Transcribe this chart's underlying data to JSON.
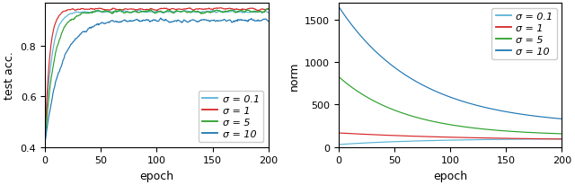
{
  "left_plot": {
    "ylabel": "test acc.",
    "xlabel": "epoch",
    "ylim": [
      0.4,
      0.97
    ],
    "xlim": [
      0,
      200
    ],
    "yticks": [
      0.4,
      0.6,
      0.8
    ],
    "xticks": [
      0,
      50,
      100,
      150,
      200
    ],
    "curves": [
      {
        "sigma": "0.1",
        "color": "#5ab4d6",
        "final": 0.935,
        "init": 0.42,
        "speed": 1.8,
        "noise": 0.006
      },
      {
        "sigma": "1",
        "color": "#d62728",
        "final": 0.945,
        "init": 0.42,
        "speed": 2.5,
        "noise": 0.006
      },
      {
        "sigma": "5",
        "color": "#2ca02c",
        "final": 0.935,
        "init": 0.42,
        "speed": 1.2,
        "noise": 0.009
      },
      {
        "sigma": "10",
        "color": "#1f77b4",
        "final": 0.9,
        "init": 0.42,
        "speed": 0.7,
        "noise": 0.01
      }
    ]
  },
  "right_plot": {
    "ylabel": "norm",
    "xlabel": "epoch",
    "ylim": [
      0,
      1700
    ],
    "xlim": [
      0,
      200
    ],
    "yticks": [
      0,
      500,
      1000,
      1500
    ],
    "xticks": [
      0,
      50,
      100,
      150,
      200
    ],
    "curves": [
      {
        "sigma": "0.1",
        "color": "#5ab4d6",
        "init": 28,
        "final": 100,
        "tau": 80,
        "rise": true
      },
      {
        "sigma": "1",
        "color": "#d62728",
        "init": 165,
        "final": 75,
        "tau": 120,
        "rise": false
      },
      {
        "sigma": "5",
        "color": "#2ca02c",
        "init": 830,
        "final": 130,
        "tau": 60,
        "rise": false
      },
      {
        "sigma": "10",
        "color": "#1f77b4",
        "init": 1660,
        "final": 250,
        "tau": 70,
        "rise": false
      }
    ]
  },
  "legend_labels": [
    "σ = 0.1",
    "σ = 1",
    "σ = 5",
    "σ = 10"
  ],
  "n_epochs": 200,
  "seed": 42
}
